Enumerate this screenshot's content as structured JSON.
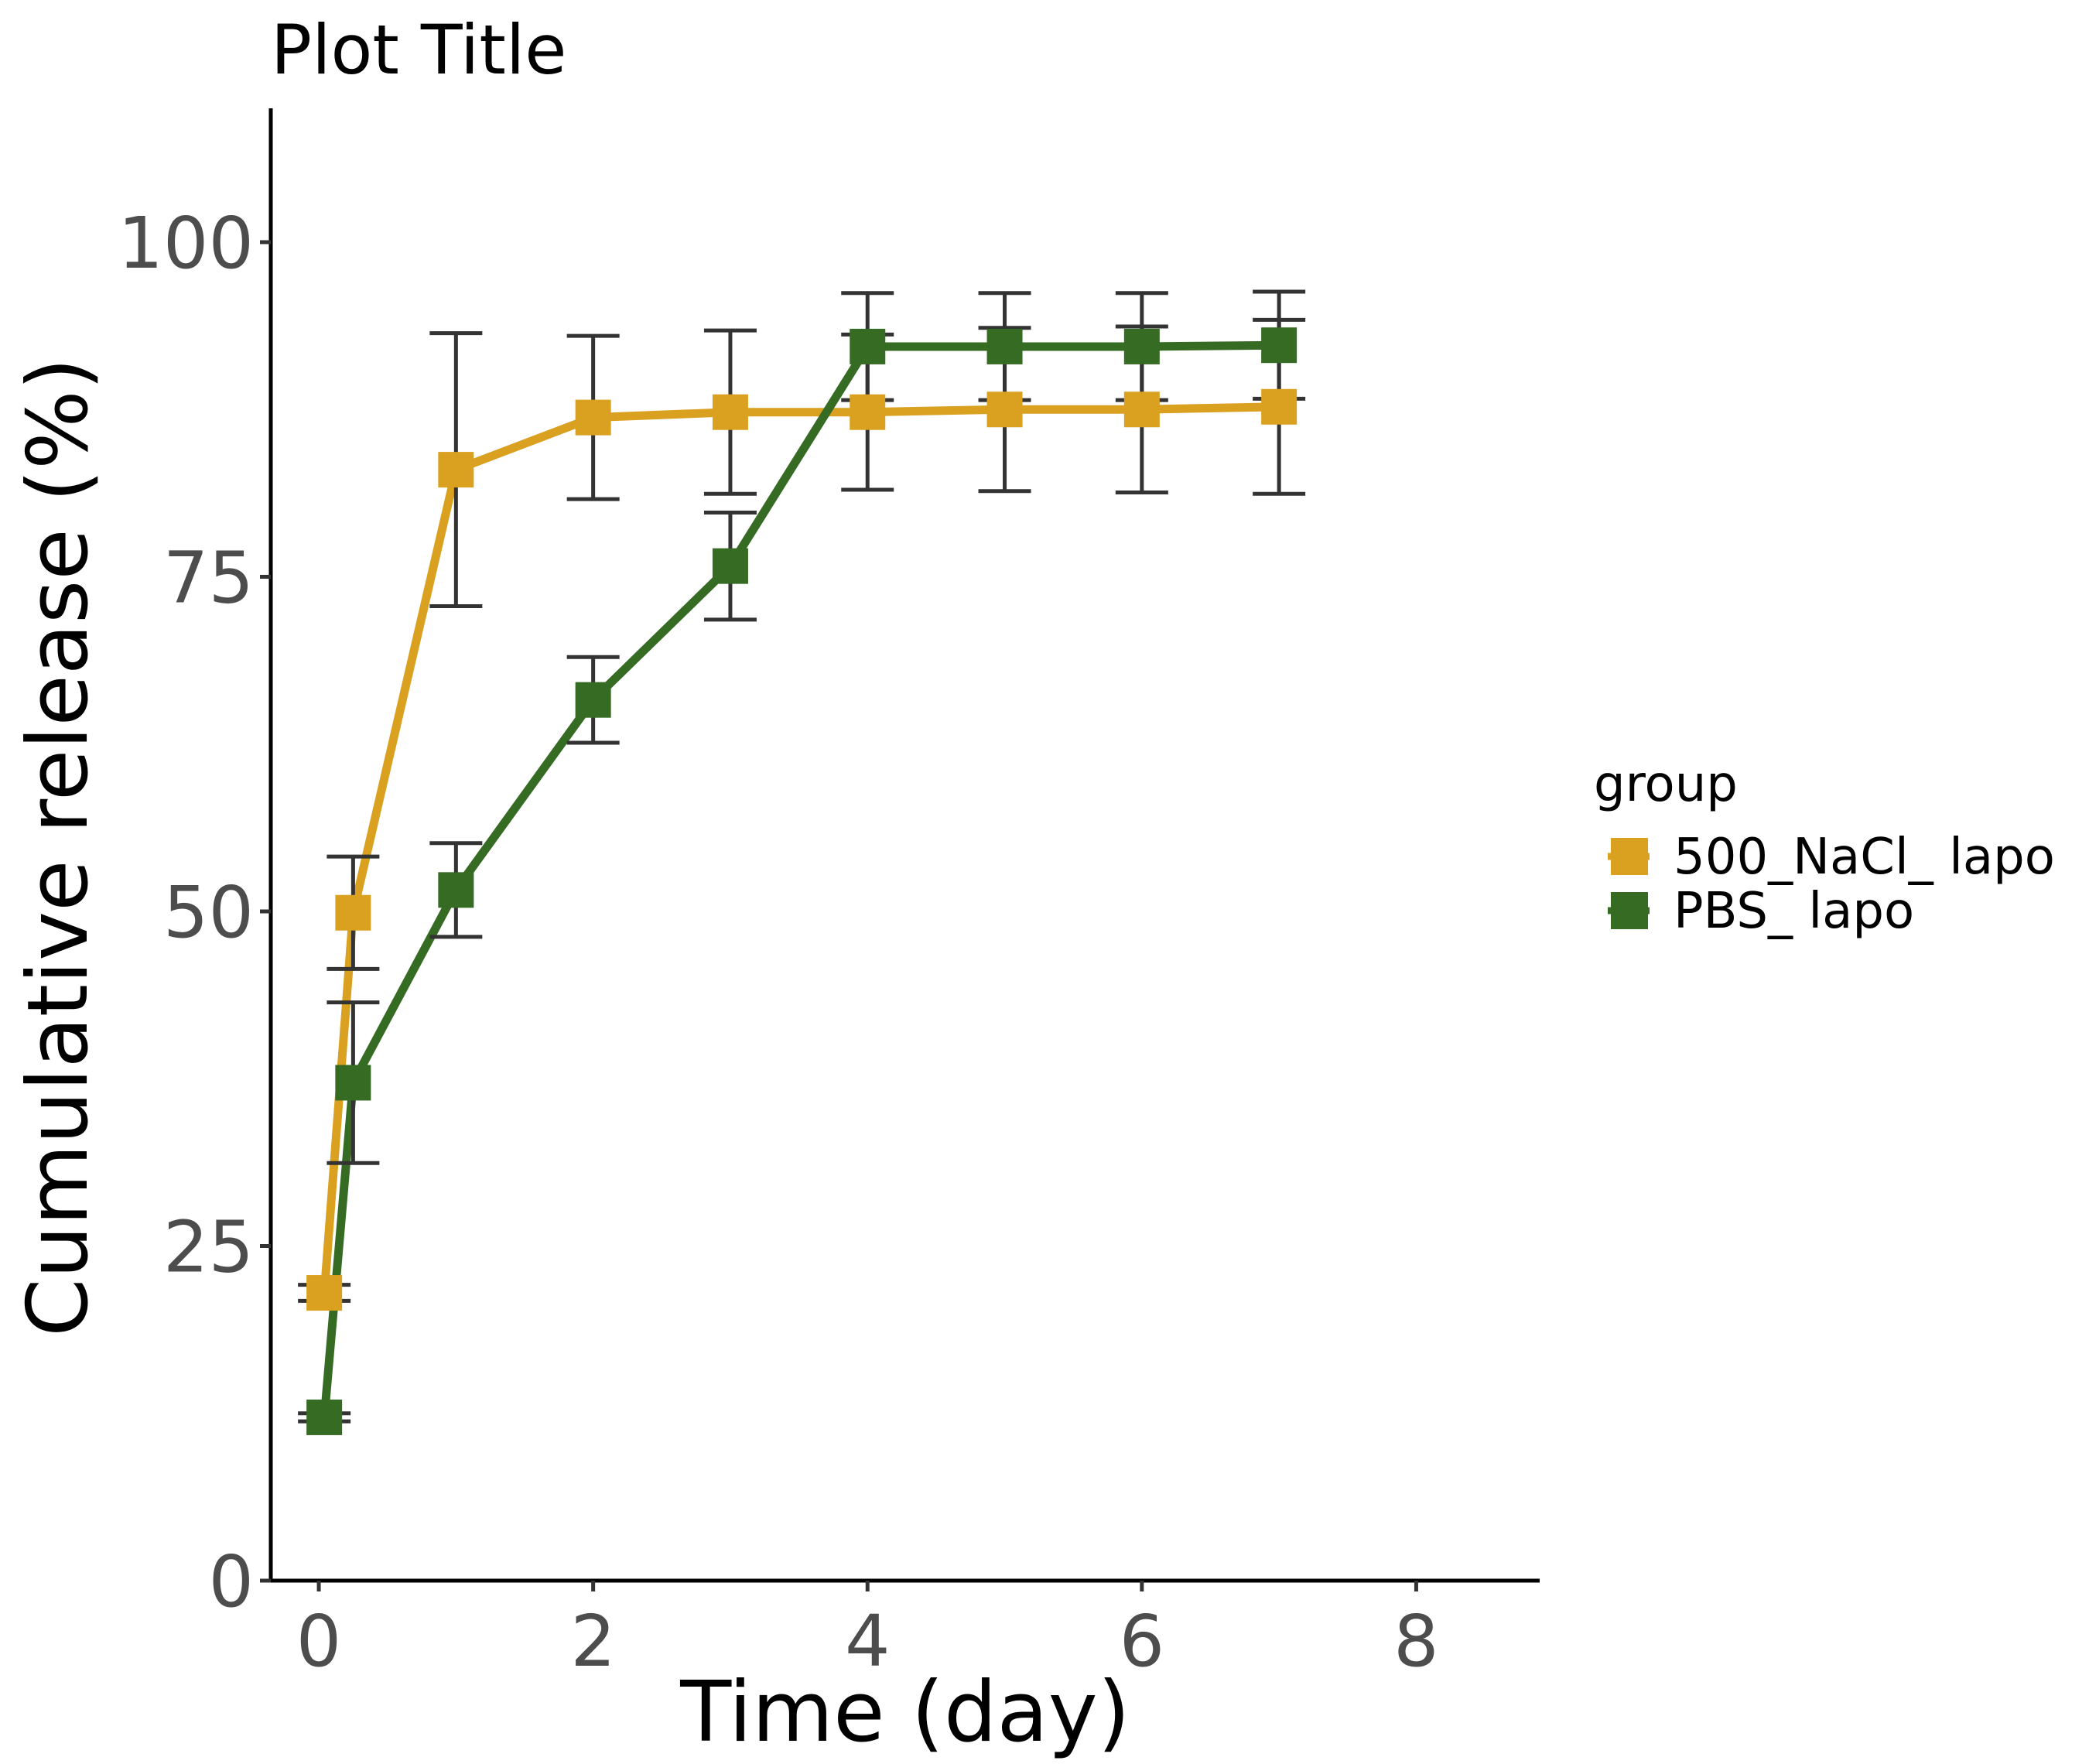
{
  "chart_data": {
    "type": "line",
    "title": "Plot Title",
    "xlabel": "Time (day)",
    "ylabel": "Cumulative release (%)",
    "xlim": [
      -0.35,
      8.9
    ],
    "ylim": [
      0,
      110
    ],
    "xticks": [
      0,
      2,
      4,
      6,
      8
    ],
    "yticks": [
      0,
      25,
      50,
      75,
      100
    ],
    "grid": false,
    "legend": {
      "title": "group",
      "position": "right"
    },
    "series": [
      {
        "name": "500_NaCl_ lapo",
        "color": "#DAA020",
        "points": [
          {
            "x": 0.04,
            "y": 21.5,
            "err": 0.6
          },
          {
            "x": 0.25,
            "y": 49.9,
            "err": 4.2
          },
          {
            "x": 1,
            "y": 83.0,
            "err": 10.2
          },
          {
            "x": 2,
            "y": 86.9,
            "err": 6.1
          },
          {
            "x": 3,
            "y": 87.3,
            "err": 6.1
          },
          {
            "x": 4,
            "y": 87.3,
            "err": 5.8
          },
          {
            "x": 5,
            "y": 87.5,
            "err": 6.1
          },
          {
            "x": 6,
            "y": 87.5,
            "err": 6.2
          },
          {
            "x": 7,
            "y": 87.7,
            "err": 6.5
          }
        ]
      },
      {
        "name": "PBS_ lapo",
        "color": "#366B24",
        "points": [
          {
            "x": 0.04,
            "y": 12.2,
            "err": 0.3
          },
          {
            "x": 0.25,
            "y": 37.2,
            "err": 6.0
          },
          {
            "x": 1,
            "y": 51.6,
            "err": 3.5
          },
          {
            "x": 2,
            "y": 65.8,
            "err": 3.2
          },
          {
            "x": 3,
            "y": 75.8,
            "err": 4.0
          },
          {
            "x": 4,
            "y": 92.2,
            "err": 4.0
          },
          {
            "x": 5,
            "y": 92.2,
            "err": 4.0
          },
          {
            "x": 6,
            "y": 92.2,
            "err": 4.0
          },
          {
            "x": 7,
            "y": 92.3,
            "err": 4.0
          }
        ]
      }
    ]
  }
}
